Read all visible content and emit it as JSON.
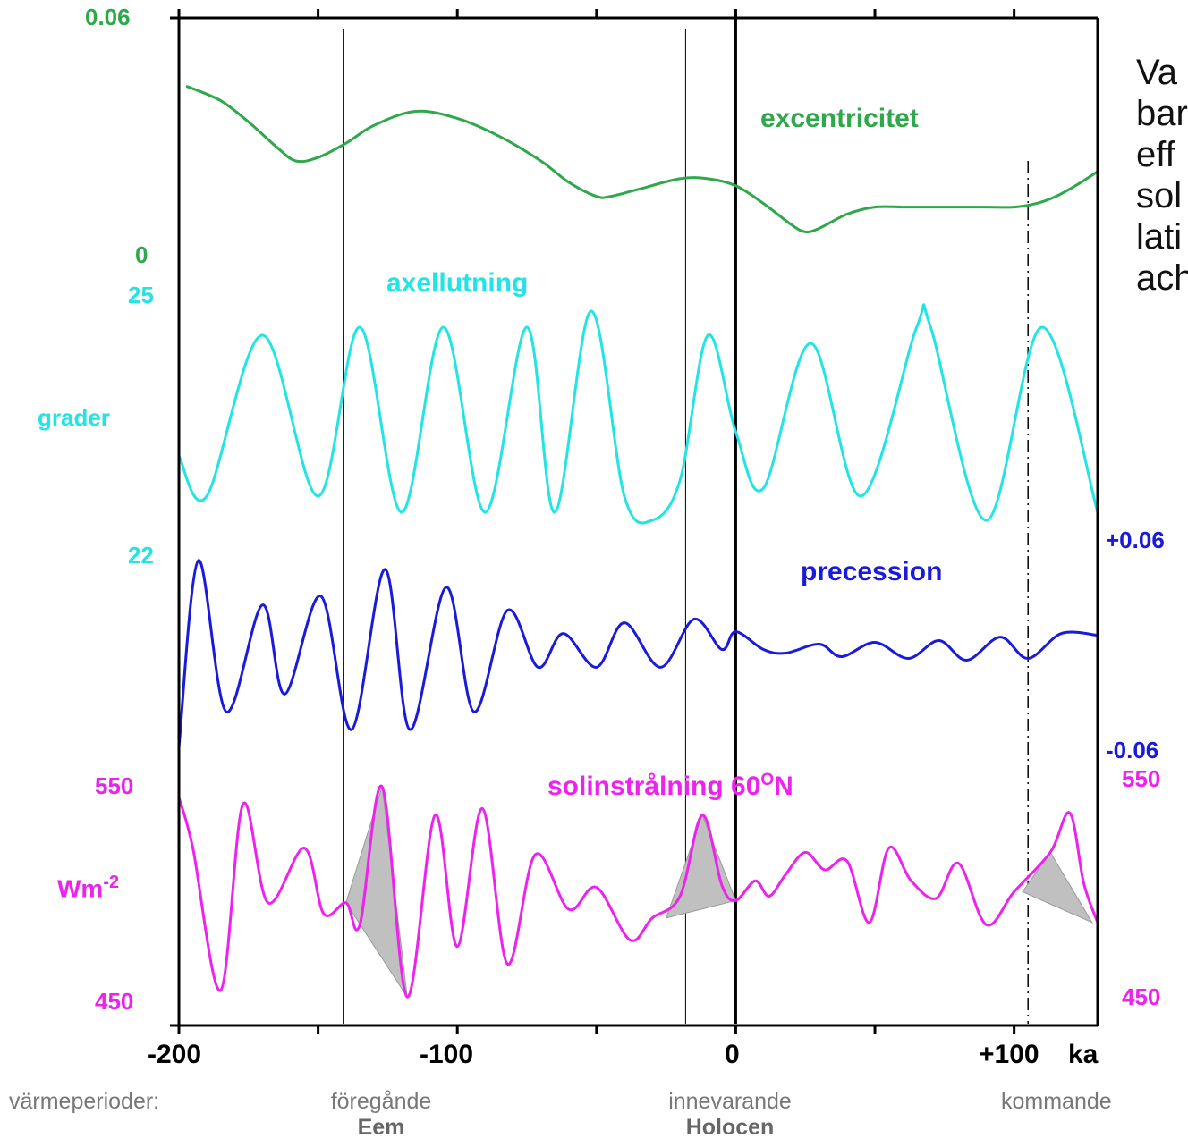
{
  "colors": {
    "eccentricity": "#2ea84a",
    "obliquity": "#22e4e4",
    "precession": "#1a1adc",
    "insolation": "#ee22ee",
    "shade": "#c0c0c0",
    "axis": "#000000",
    "periods_text": "#777777"
  },
  "axis": {
    "x_ticks": [
      "-200",
      "-100",
      "0",
      "+100"
    ],
    "x_unit": "ka",
    "xlim": [
      -200,
      130
    ]
  },
  "labels": {
    "ecc_top": "0.06",
    "ecc_bottom": "0",
    "ecc_name": "excentricitet",
    "obl_top": "25",
    "obl_unit": "grader",
    "obl_bottom": "22",
    "obl_name": "axellutning",
    "prec_top": "+0.06",
    "prec_bottom": "-0.06",
    "prec_name": "precession",
    "ins_top_left": "550",
    "ins_top_right": "550",
    "ins_unit_base": "Wm",
    "ins_unit_exp": "-2",
    "ins_bottom_left": "450",
    "ins_bottom_right": "450",
    "ins_name_main": "solinstrålning 60",
    "ins_name_sup": "O",
    "ins_name_end": "N"
  },
  "side_text": [
    "Va",
    "bar",
    "eff",
    "sol",
    "lati",
    "ach"
  ],
  "periods": {
    "label": "värmeperioder:",
    "previous": "föregånde",
    "previous_name": "Eem",
    "current": "innevarande",
    "current_name": "Holocen",
    "next": "kommande"
  },
  "chart_data": [
    {
      "type": "line",
      "name": "excentricitet",
      "ylim": [
        0,
        0.06
      ],
      "x": [
        -197,
        -185,
        -175,
        -165,
        -158,
        -150,
        -140,
        -130,
        -115,
        -100,
        -85,
        -70,
        -60,
        -50,
        -45,
        -35,
        -20,
        -10,
        0,
        10,
        20,
        25,
        30,
        40,
        50,
        60,
        70,
        80,
        90,
        100,
        108,
        115,
        122,
        130
      ],
      "y": [
        0.052,
        0.048,
        0.042,
        0.035,
        0.031,
        0.032,
        0.036,
        0.041,
        0.045,
        0.043,
        0.038,
        0.031,
        0.025,
        0.021,
        0.021,
        0.023,
        0.026,
        0.026,
        0.024,
        0.019,
        0.013,
        0.011,
        0.012,
        0.016,
        0.018,
        0.018,
        0.018,
        0.018,
        0.018,
        0.018,
        0.019,
        0.021,
        0.024,
        0.028
      ]
    },
    {
      "type": "line",
      "name": "axellutning",
      "ylim": [
        22,
        25
      ],
      "x": [
        -200,
        -190,
        -170,
        -150,
        -135,
        -120,
        -105,
        -90,
        -75,
        -65,
        -52,
        -40,
        -30,
        -20,
        -10,
        0,
        10,
        27,
        45,
        65,
        70,
        90,
        110,
        130
      ],
      "y": [
        23.0,
        22.5,
        24.5,
        22.5,
        24.6,
        22.3,
        24.6,
        22.3,
        24.6,
        22.3,
        24.8,
        22.5,
        22.2,
        22.7,
        24.5,
        23.3,
        22.6,
        24.4,
        22.5,
        24.6,
        24.6,
        22.2,
        24.6,
        22.3
      ]
    },
    {
      "type": "line",
      "name": "precession",
      "ylim": [
        -0.06,
        0.06
      ],
      "x": [
        -200,
        -193,
        -183,
        -170,
        -162,
        -149,
        -138,
        -126,
        -117,
        -104,
        -94,
        -82,
        -71,
        -62,
        -50,
        -40,
        -27,
        -15,
        -5,
        0,
        10,
        18,
        30,
        38,
        50,
        62,
        73,
        83,
        95,
        105,
        117,
        130
      ],
      "y": [
        -0.055,
        0.05,
        -0.035,
        0.025,
        -0.025,
        0.03,
        -0.045,
        0.045,
        -0.045,
        0.035,
        -0.035,
        0.022,
        -0.01,
        0.009,
        -0.01,
        0.015,
        -0.01,
        0.017,
        0.0,
        0.01,
        0.0,
        -0.002,
        0.003,
        -0.004,
        0.004,
        -0.005,
        0.005,
        -0.006,
        0.007,
        -0.005,
        0.009,
        0.008
      ]
    },
    {
      "type": "line",
      "name": "solinstrålning 60°N",
      "ylim": [
        450,
        550
      ],
      "x": [
        -200,
        -195,
        -185,
        -177,
        -168,
        -155,
        -148,
        -140,
        -135,
        -127,
        -118,
        -108,
        -100,
        -91,
        -82,
        -72,
        -60,
        -50,
        -38,
        -30,
        -20,
        -12,
        -5,
        0,
        7,
        12,
        18,
        25,
        32,
        40,
        48,
        55,
        63,
        72,
        80,
        90,
        100,
        113,
        120,
        125,
        130
      ],
      "y": [
        543,
        520,
        455,
        540,
        495,
        520,
        490,
        495,
        485,
        548,
        452,
        535,
        475,
        538,
        467,
        517,
        492,
        502,
        478,
        488,
        498,
        535,
        503,
        496,
        505,
        498,
        508,
        518,
        510,
        514,
        486,
        520,
        505,
        497,
        513,
        485,
        500,
        518,
        536,
        504,
        486
      ]
    }
  ]
}
